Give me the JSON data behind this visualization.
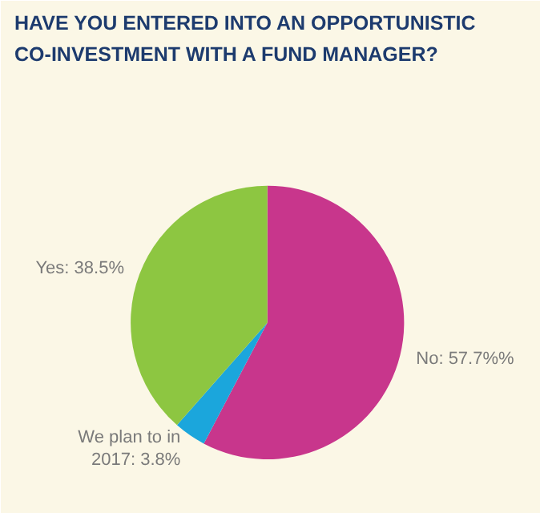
{
  "chart_data": {
    "type": "pie",
    "title": "HAVE YOU ENTERED INTO AN OPPORTUNISTIC CO-INVESTMENT WITH A FUND MANAGER?",
    "categories": [
      "No",
      "We plan to in 2017",
      "Yes"
    ],
    "values": [
      57.7,
      3.8,
      38.5
    ],
    "value_labels": [
      "57.7%%",
      "3.8%",
      "38.5%"
    ],
    "colors": [
      "#c8368c",
      "#1ba6dc",
      "#8dc641"
    ]
  }
}
